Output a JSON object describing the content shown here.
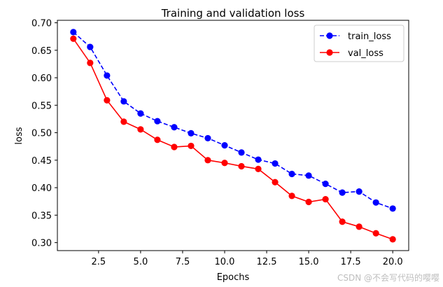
{
  "chart_data": {
    "type": "line",
    "title": "Training and validation loss",
    "xlabel": "Epochs",
    "ylabel": "loss",
    "xlim": [
      0.05,
      20.95
    ],
    "ylim": [
      0.2855,
      0.7045
    ],
    "xticks": [
      2.5,
      5.0,
      7.5,
      10.0,
      12.5,
      15.0,
      17.5,
      20.0
    ],
    "xtick_labels": [
      "2.5",
      "5.0",
      "7.5",
      "10.0",
      "12.5",
      "15.0",
      "17.5",
      "20.0"
    ],
    "yticks": [
      0.3,
      0.35,
      0.4,
      0.45,
      0.5,
      0.55,
      0.6,
      0.65,
      0.7
    ],
    "ytick_labels": [
      "0.30",
      "0.35",
      "0.40",
      "0.45",
      "0.50",
      "0.55",
      "0.60",
      "0.65",
      "0.70"
    ],
    "x": [
      1,
      2,
      3,
      4,
      5,
      6,
      7,
      8,
      9,
      10,
      11,
      12,
      13,
      14,
      15,
      16,
      17,
      18,
      19,
      20
    ],
    "series": [
      {
        "name": "train_loss",
        "color": "#0000ff",
        "linestyle": "dashed",
        "marker": "circle",
        "values": [
          0.683,
          0.656,
          0.604,
          0.557,
          0.535,
          0.521,
          0.51,
          0.499,
          0.49,
          0.477,
          0.464,
          0.451,
          0.444,
          0.425,
          0.422,
          0.407,
          0.391,
          0.393,
          0.373,
          0.362
        ]
      },
      {
        "name": "val_loss",
        "color": "#ff0000",
        "linestyle": "solid",
        "marker": "circle",
        "values": [
          0.671,
          0.627,
          0.559,
          0.52,
          0.506,
          0.487,
          0.474,
          0.476,
          0.45,
          0.445,
          0.439,
          0.434,
          0.41,
          0.385,
          0.374,
          0.379,
          0.338,
          0.329,
          0.317,
          0.306
        ]
      }
    ],
    "legend_position": "top-right",
    "grid": false
  },
  "watermark": "CSDN @不会写代码的嘤嘤"
}
